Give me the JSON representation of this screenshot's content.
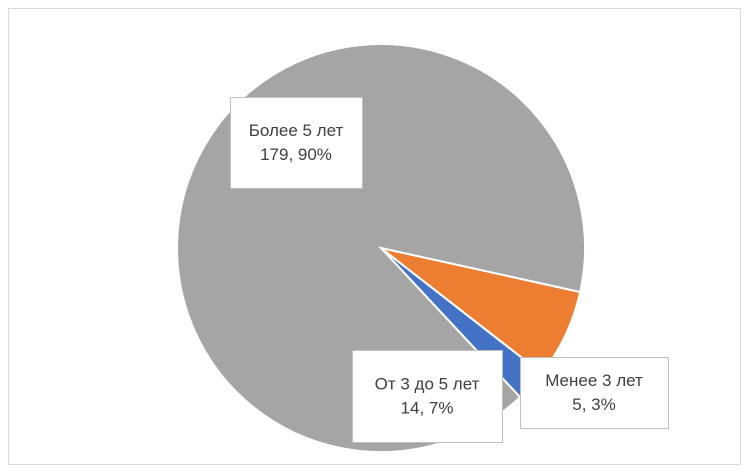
{
  "chart_data": {
    "type": "pie",
    "categories": [
      "Менее 3 лет",
      "От 3 до 5 лет",
      "Более 5 лет"
    ],
    "values": [
      5,
      14,
      179
    ],
    "value_labels": [
      "5, 3%",
      "14, 7%",
      "179, 90%"
    ],
    "colors": [
      "#4472c4",
      "#ed7d31",
      "#a5a5a5"
    ]
  }
}
